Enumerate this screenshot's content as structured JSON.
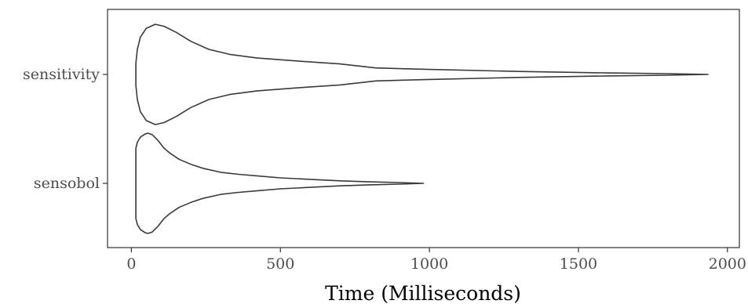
{
  "chart_data": {
    "type": "violin",
    "title": "",
    "xlabel": "Time (Milliseconds)",
    "ylabel": "",
    "xlim": [
      -80,
      2040
    ],
    "x_ticks": [
      {
        "value": 0,
        "label": "0"
      },
      {
        "value": 500,
        "label": "500"
      },
      {
        "value": 1000,
        "label": "1000"
      },
      {
        "value": 1500,
        "label": "1500"
      },
      {
        "value": 2000,
        "label": "2000"
      }
    ],
    "categories": [
      "sensitivity",
      "sensobol"
    ],
    "grid": false,
    "series": [
      {
        "name": "sensitivity",
        "min": 15,
        "max": 1935,
        "profile": [
          [
            15,
            0.22
          ],
          [
            20,
            0.5
          ],
          [
            30,
            0.74
          ],
          [
            50,
            0.92
          ],
          [
            80,
            1.0
          ],
          [
            110,
            0.96
          ],
          [
            150,
            0.84
          ],
          [
            200,
            0.66
          ],
          [
            260,
            0.5
          ],
          [
            330,
            0.4
          ],
          [
            420,
            0.33
          ],
          [
            550,
            0.27
          ],
          [
            700,
            0.21
          ],
          [
            820,
            0.13
          ],
          [
            1000,
            0.1
          ],
          [
            1300,
            0.06
          ],
          [
            1600,
            0.03
          ],
          [
            1800,
            0.015
          ],
          [
            1935,
            0.0
          ]
        ]
      },
      {
        "name": "sensobol",
        "min": 15,
        "max": 980,
        "profile": [
          [
            15,
            0.7
          ],
          [
            20,
            0.82
          ],
          [
            30,
            0.92
          ],
          [
            45,
            0.98
          ],
          [
            55,
            1.0
          ],
          [
            70,
            0.97
          ],
          [
            90,
            0.85
          ],
          [
            110,
            0.7
          ],
          [
            130,
            0.6
          ],
          [
            160,
            0.48
          ],
          [
            200,
            0.38
          ],
          [
            240,
            0.3
          ],
          [
            300,
            0.22
          ],
          [
            360,
            0.18
          ],
          [
            420,
            0.15
          ],
          [
            500,
            0.11
          ],
          [
            600,
            0.08
          ],
          [
            700,
            0.05
          ],
          [
            800,
            0.03
          ],
          [
            900,
            0.015
          ],
          [
            980,
            0.0
          ]
        ]
      }
    ]
  }
}
